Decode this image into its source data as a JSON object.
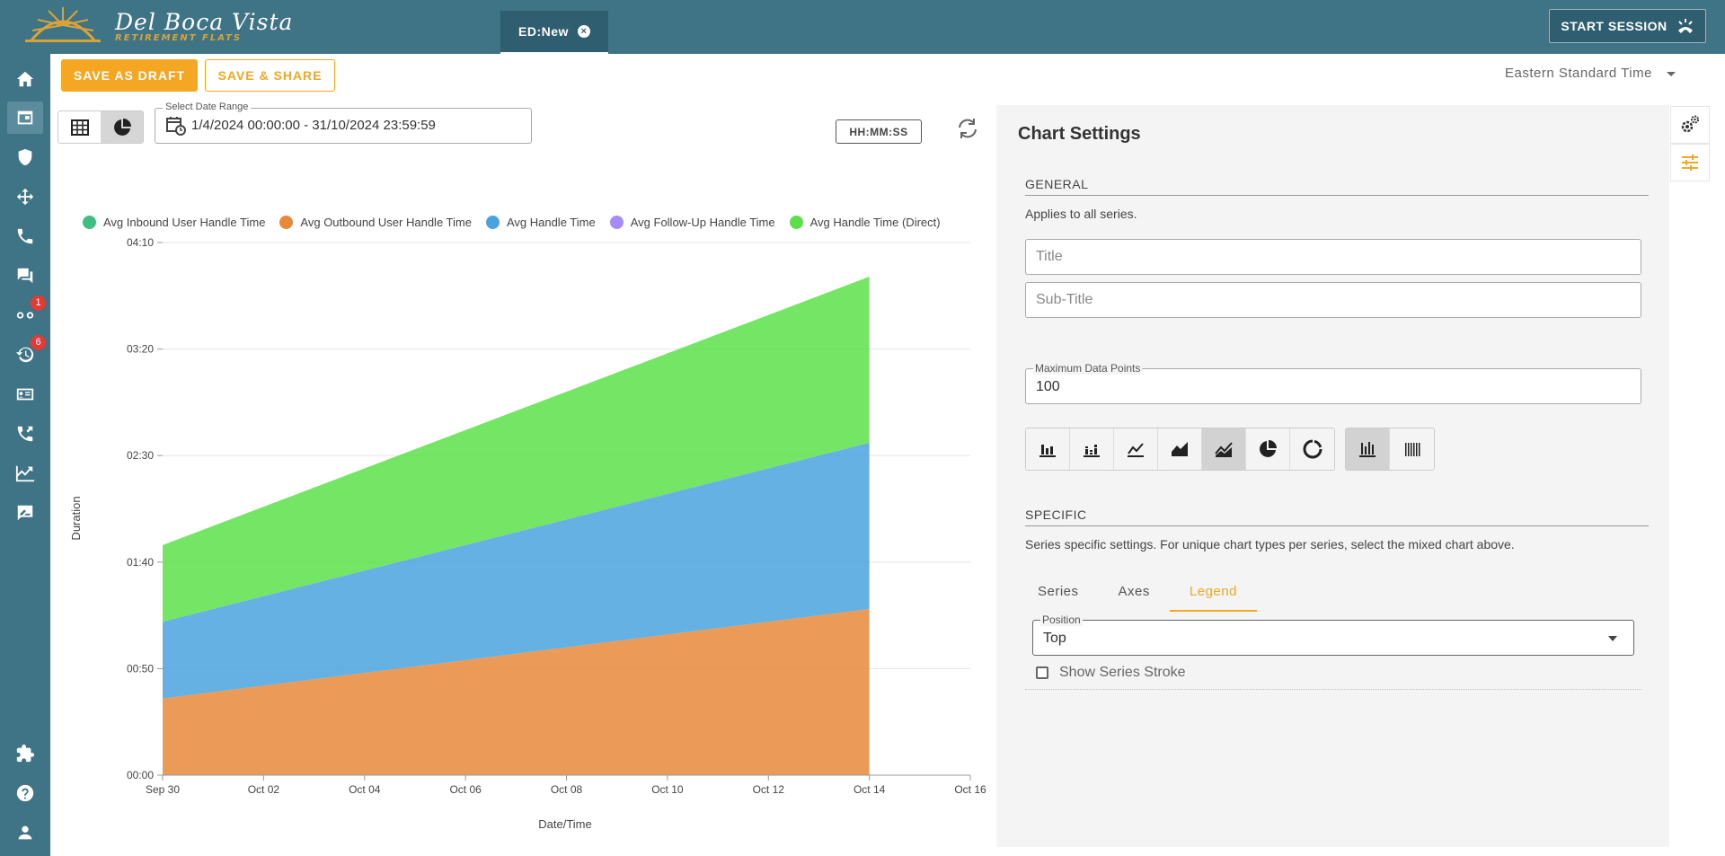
{
  "app": {
    "brand_name": "Del Boca Vista",
    "brand_tagline": "RETIREMENT FLATS",
    "tab_label": "ED:New",
    "start_session_label": "START SESSION"
  },
  "sidebar": {
    "items": [
      {
        "icon": "home-icon"
      },
      {
        "icon": "dashboard-icon"
      },
      {
        "icon": "shield-icon"
      },
      {
        "icon": "move-icon"
      },
      {
        "icon": "phone-icon"
      },
      {
        "icon": "chat-icon"
      },
      {
        "icon": "voicemail-icon",
        "badge": "1"
      },
      {
        "icon": "history-icon",
        "badge": "6"
      },
      {
        "icon": "contact-card-icon"
      },
      {
        "icon": "call-transfer-icon"
      },
      {
        "icon": "analytics-icon"
      },
      {
        "icon": "feedback-icon"
      },
      {
        "icon": "puzzle-icon"
      },
      {
        "icon": "help-icon"
      },
      {
        "icon": "user-icon"
      }
    ]
  },
  "actions": {
    "save_draft_label": "SAVE AS DRAFT",
    "save_share_label": "SAVE & SHARE",
    "timezone": "Eastern Standard Time"
  },
  "toolbar": {
    "date_range_label": "Select Date Range",
    "date_range_value": "1/4/2024 00:00:00 - 31/10/2024 23:59:59",
    "time_format_label": "HH:MM:SS"
  },
  "chart_data": {
    "type": "area",
    "stacked": true,
    "xlabel": "Date/Time",
    "ylabel": "Duration",
    "x_ticks": [
      "Sep 30",
      "Oct 02",
      "Oct 04",
      "Oct 06",
      "Oct 08",
      "Oct 10",
      "Oct 12",
      "Oct 14",
      "Oct 16"
    ],
    "y_ticks": [
      "00:00",
      "00:50",
      "01:40",
      "02:30",
      "03:20",
      "04:10"
    ],
    "ylim_seconds": [
      0,
      250
    ],
    "xlim": [
      "2024-09-30",
      "2024-10-16"
    ],
    "x": [
      "2024-09-30",
      "2024-10-14"
    ],
    "legend_position": "top",
    "series": [
      {
        "name": "Avg Inbound User Handle Time",
        "color": "#3fbf7f",
        "values_seconds": [
          0,
          0
        ]
      },
      {
        "name": "Avg Outbound User Handle Time",
        "color": "#e8893a",
        "values_seconds": [
          36,
          78
        ]
      },
      {
        "name": "Avg Handle Time",
        "color": "#4aa3df",
        "values_seconds": [
          36,
          78
        ]
      },
      {
        "name": "Avg Follow-Up Handle Time",
        "color": "#a78bfa",
        "values_seconds": [
          0,
          0
        ]
      },
      {
        "name": "Avg Handle Time (Direct)",
        "color": "#5ce04a",
        "values_seconds": [
          36,
          78
        ]
      }
    ]
  },
  "settings": {
    "title": "Chart Settings",
    "general_heading": "GENERAL",
    "general_desc": "Applies to all series.",
    "title_placeholder": "Title",
    "subtitle_placeholder": "Sub-Title",
    "max_points_label": "Maximum Data Points",
    "max_points_value": "100",
    "chart_types": [
      "bar-chart-icon",
      "stacked-bar-icon",
      "line-chart-icon",
      "area-chart-icon",
      "mixed-chart-icon",
      "pie-chart-icon",
      "donut-chart-icon"
    ],
    "selected_chart_type": "mixed-chart-icon",
    "orientations": [
      "vertical-bars-icon",
      "thin-bars-icon"
    ],
    "selected_orientation": "vertical-bars-icon",
    "specific_heading": "SPECIFIC",
    "specific_desc": "Series specific settings. For unique chart types per series, select the mixed chart above.",
    "tabs": [
      "Series",
      "Axes",
      "Legend"
    ],
    "active_tab": "Legend",
    "position_label": "Position",
    "position_value": "Top",
    "show_stroke_label": "Show Series Stroke",
    "show_stroke_checked": false
  },
  "colors": {
    "topbar": "#3f7386",
    "accent": "#f5a623",
    "panel_bg": "#f4f4f4"
  }
}
